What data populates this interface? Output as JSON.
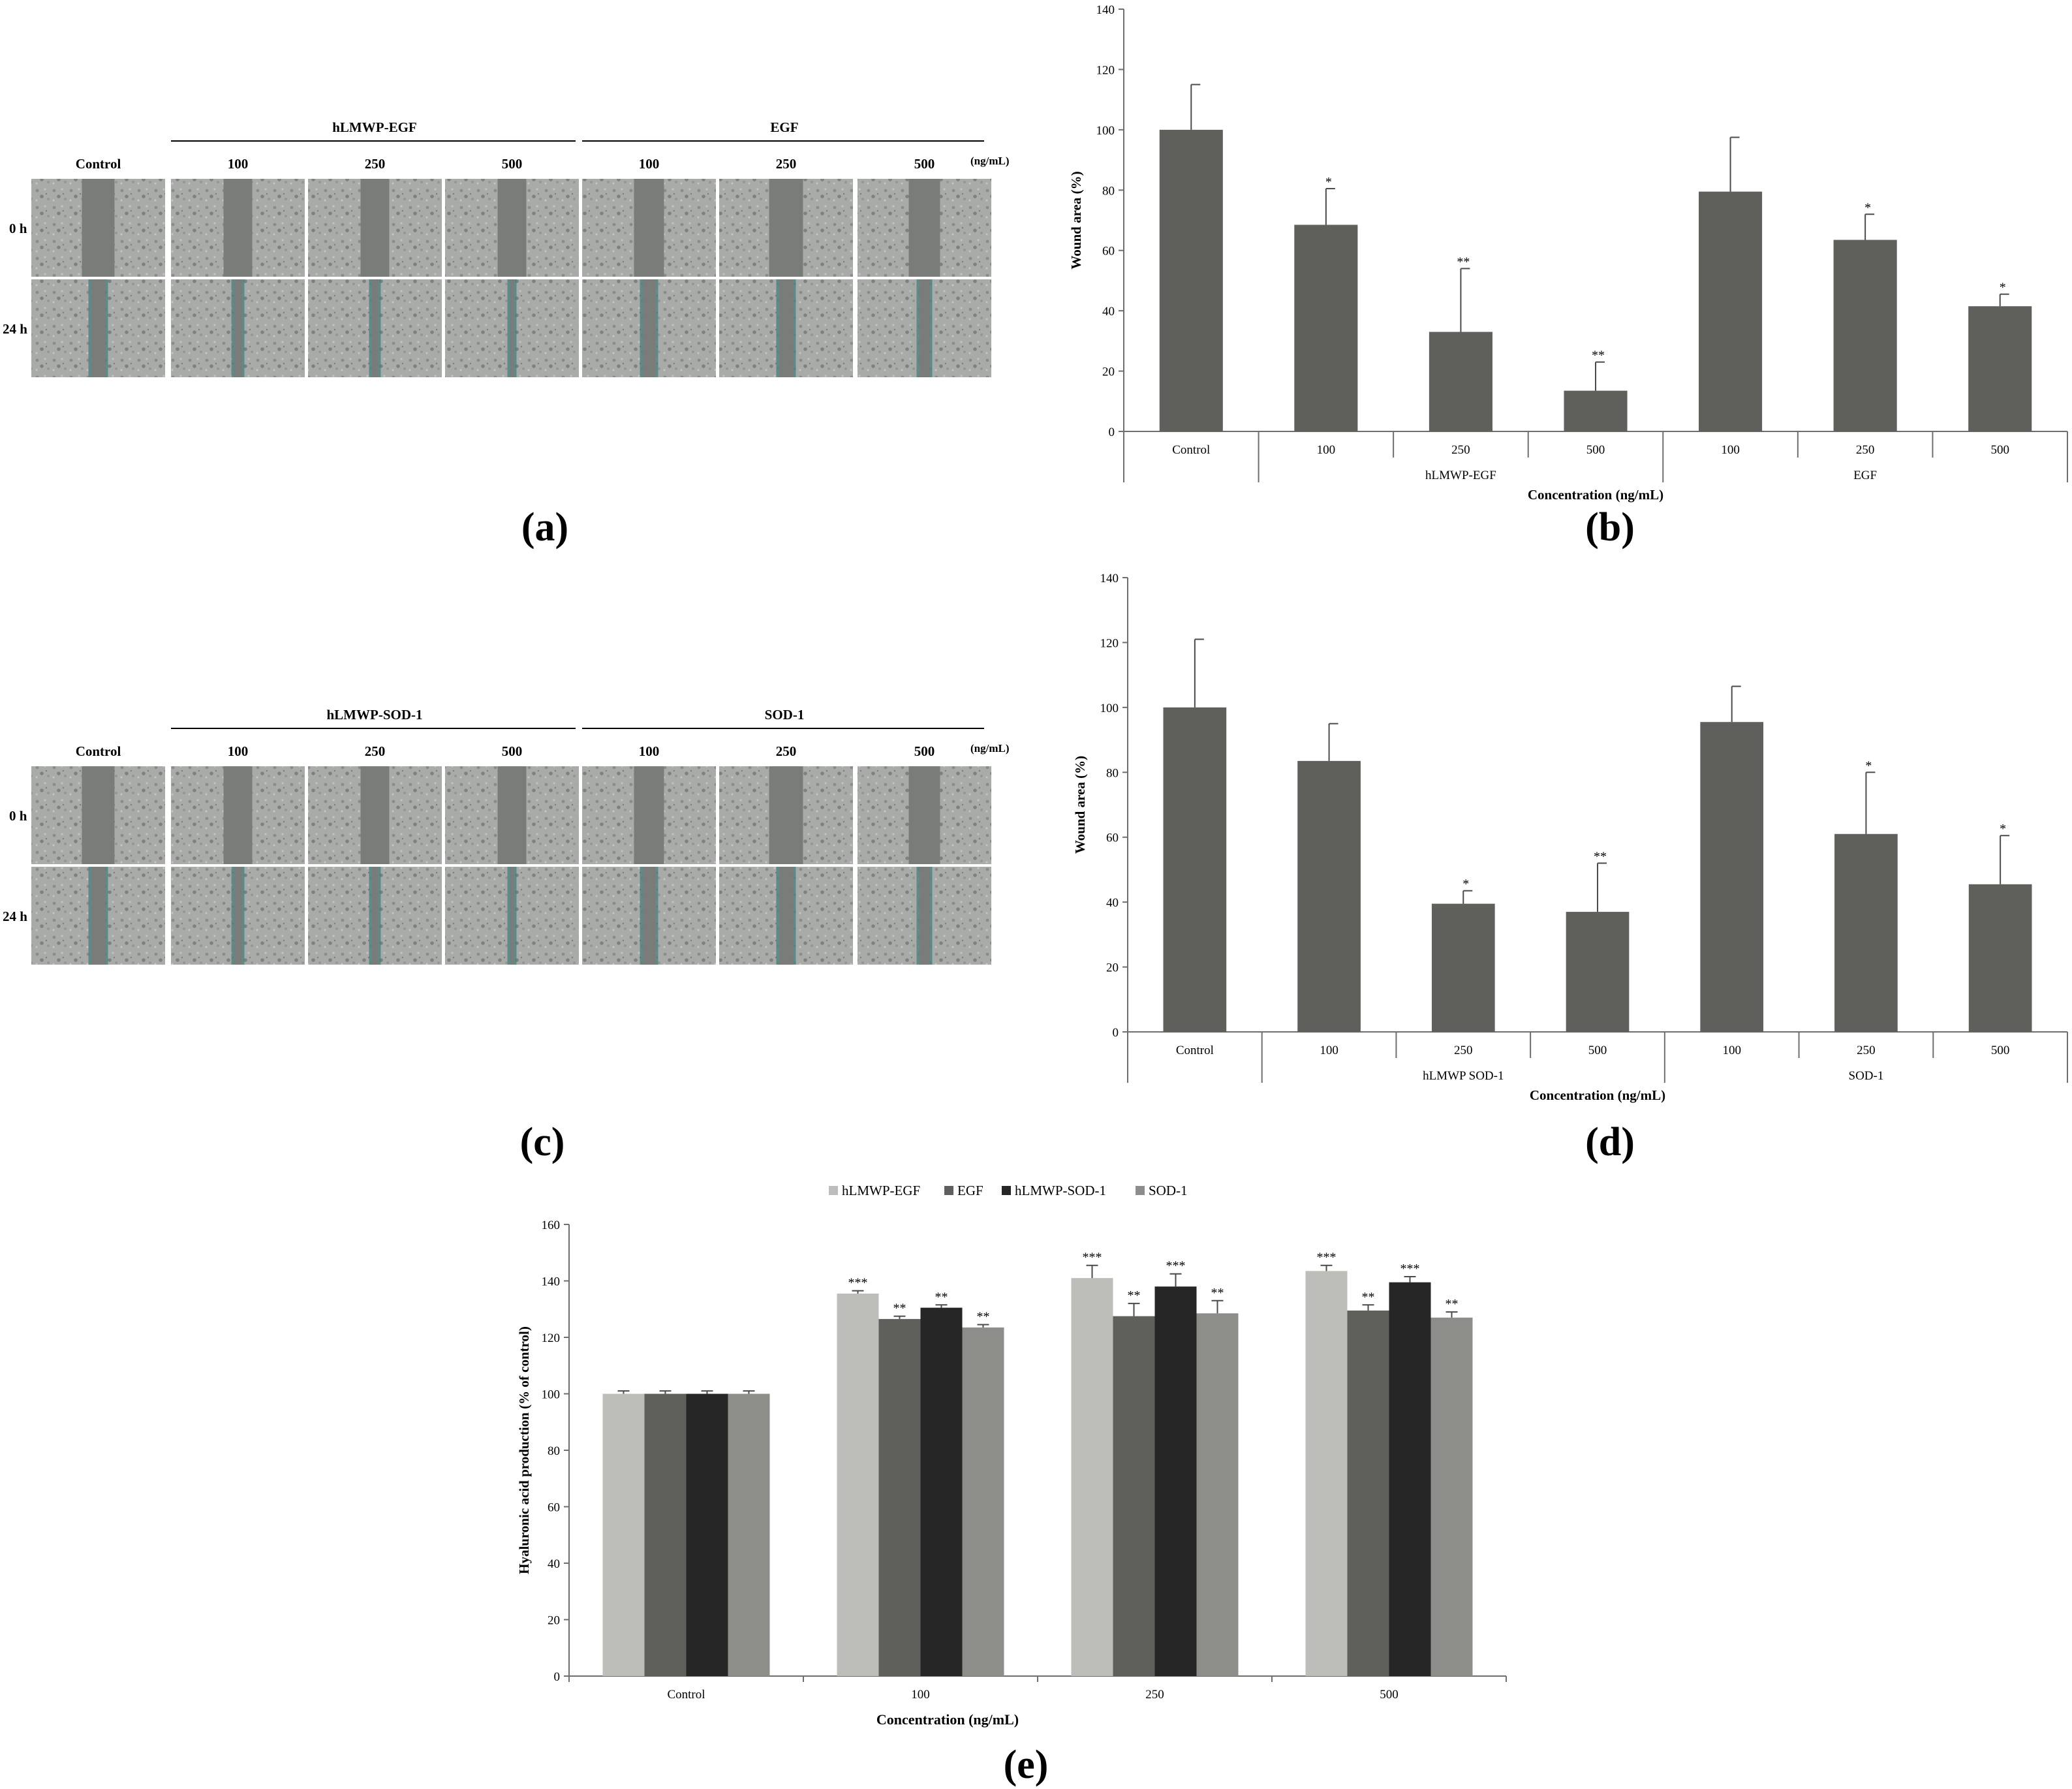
{
  "figure_labels": {
    "a": "(a)",
    "b": "(b)",
    "c": "(c)",
    "d": "(d)",
    "e": "(e)"
  },
  "panel_a": {
    "groups": [
      "hLMWP-EGF",
      "EGF"
    ],
    "columns": [
      "Control",
      "100",
      "250",
      "500",
      "100",
      "250",
      "500"
    ],
    "unit": "(ng/mL)",
    "rows": [
      "0 h",
      "24 h"
    ]
  },
  "panel_c": {
    "groups": [
      "hLMWP-SOD-1",
      "SOD-1"
    ],
    "columns": [
      "Control",
      "100",
      "250",
      "500",
      "100",
      "250",
      "500"
    ],
    "unit": "(ng/mL)",
    "rows": [
      "0 h",
      "24 h"
    ]
  },
  "colors": {
    "bar": "#5f5f5c",
    "axis": "#6e6e6e",
    "wound": "#7a7c79",
    "cells": "#a8aaa7",
    "stain": "#3c7e7a"
  },
  "chart_data": [
    {
      "id": "b",
      "type": "bar",
      "categories": [
        "Control",
        "100",
        "250",
        "500",
        "100",
        "250",
        "500"
      ],
      "groups": [
        "hLMWP-EGF",
        "EGF"
      ],
      "values": [
        100,
        68.5,
        33,
        13.5,
        79.5,
        63.5,
        41.5
      ],
      "errors": [
        15,
        12,
        21,
        9.5,
        18,
        8.5,
        4
      ],
      "significance": [
        "",
        "*",
        "**",
        "**",
        "",
        "*",
        "*"
      ],
      "ylabel": "Wound area (%)",
      "xlabel": "Concentration (ng/mL)",
      "ylim": [
        0,
        140
      ],
      "yticks": [
        "0",
        "20",
        "40",
        "60",
        "80",
        "100",
        "120",
        "140"
      ]
    },
    {
      "id": "d",
      "type": "bar",
      "categories": [
        "Control",
        "100",
        "250",
        "500",
        "100",
        "250",
        "500"
      ],
      "groups": [
        "hLMWP SOD-1",
        "SOD-1"
      ],
      "values": [
        100,
        83.5,
        39.5,
        37,
        95.5,
        61,
        45.5
      ],
      "errors": [
        21,
        11.5,
        4,
        15,
        11,
        19,
        15
      ],
      "significance": [
        "",
        "",
        "*",
        "**",
        "",
        "*",
        "*"
      ],
      "ylabel": "Wound area (%)",
      "xlabel": "Concentration (ng/mL)",
      "ylim": [
        0,
        140
      ],
      "yticks": [
        "0",
        "20",
        "40",
        "60",
        "80",
        "100",
        "120",
        "140"
      ]
    },
    {
      "id": "e",
      "type": "bar",
      "categories": [
        "Control",
        "100",
        "250",
        "500"
      ],
      "series": [
        {
          "name": "hLMWP-EGF",
          "color": "#bdbdb9",
          "values": [
            100,
            135.5,
            141,
            143.5
          ],
          "errors": [
            1,
            1,
            4.5,
            2
          ],
          "significance": [
            "",
            "***",
            "***",
            "***"
          ]
        },
        {
          "name": "EGF",
          "color": "#5f5f5c",
          "values": [
            100,
            126.5,
            127.5,
            129.5
          ],
          "errors": [
            1,
            1,
            4.5,
            2
          ],
          "significance": [
            "",
            "**",
            "**",
            "**"
          ]
        },
        {
          "name": "hLMWP-SOD-1",
          "color": "#262626",
          "values": [
            100,
            130.5,
            138,
            139.5
          ],
          "errors": [
            1,
            1,
            4.5,
            2
          ],
          "significance": [
            "",
            "**",
            "***",
            "***"
          ]
        },
        {
          "name": "SOD-1",
          "color": "#8d8d8a",
          "values": [
            100,
            123.5,
            128.5,
            127
          ],
          "errors": [
            1,
            1,
            4.5,
            2
          ],
          "significance": [
            "",
            "**",
            "**",
            "**"
          ]
        }
      ],
      "ylabel": "Hyaluronic acid production (% of control)",
      "xlabel": "Concentration (ng/mL)",
      "ylim": [
        0,
        160
      ],
      "yticks": [
        "0",
        "20",
        "40",
        "60",
        "80",
        "100",
        "120",
        "140",
        "160"
      ],
      "legend_position": "top"
    }
  ]
}
